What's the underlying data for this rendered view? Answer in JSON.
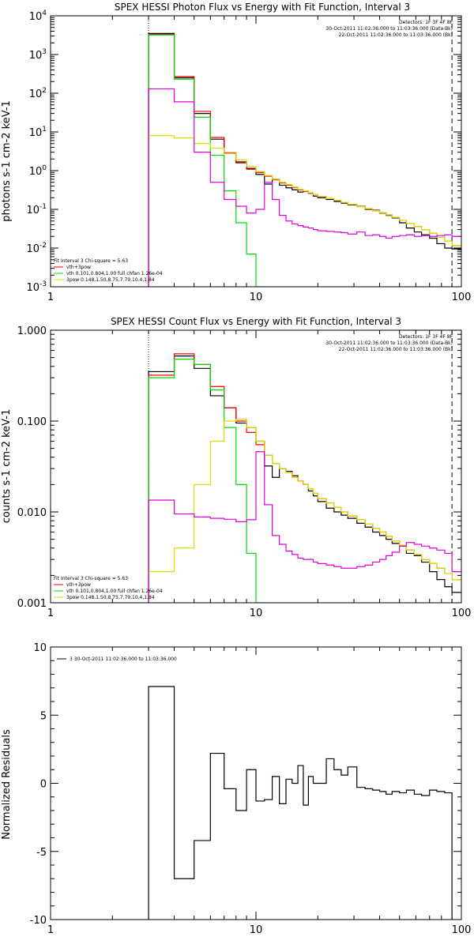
{
  "chart_data": [
    {
      "type": "line",
      "title": "SPEX HESSI Photon Flux vs Energy with Fit Function, Interval 3",
      "ylabel": "photons s-1 cm-2 keV-1",
      "xlabel": "",
      "x_scale": "log",
      "y_scale": "log",
      "xlim": [
        1,
        100
      ],
      "ylim": [
        0.001,
        10000
      ],
      "x_ticks": [
        "1",
        "10",
        "100"
      ],
      "y_ticks": [
        "10-3",
        "10-2",
        "10-1",
        "100",
        "101",
        "102",
        "103",
        "104"
      ],
      "vlines": [
        3,
        90
      ],
      "detectors_text": "Detectors: 1F 3F 4F 8F",
      "time_labels": [
        "30-Oct-2011 11:02:36.000 to 11:03:36.000 (Data-Bk)",
        "22-Oct-2011 11:02:36.000 to 11:03:36.000 (Bk)"
      ],
      "fit_label": "Fit Interval 3    Chi-square = 5.63",
      "legend": [
        {
          "name": "vth+3pow",
          "color": "#ff0000"
        },
        {
          "name": "vth 0.101,0.804,1.00  full chfan 1.26e-04",
          "color": "#00dd00"
        },
        {
          "name": "3pow 0.148,1.50,8.75,7.79,10.4,1.84",
          "color": "#dddd00"
        }
      ],
      "edges": [
        3,
        4,
        5,
        6,
        7,
        8,
        9,
        10,
        11,
        12,
        13,
        14,
        15,
        16,
        17,
        18,
        19,
        20,
        22,
        24,
        26,
        28,
        31,
        34,
        37,
        40,
        43,
        46,
        50,
        54,
        59,
        64,
        70,
        76,
        83,
        90,
        100
      ],
      "series": [
        {
          "name": "Data-Bk",
          "color": "#000000",
          "values": [
            3500,
            250,
            30,
            6.5,
            2.8,
            1.6,
            1.1,
            0.8,
            0.45,
            0.6,
            0.42,
            0.36,
            0.32,
            0.28,
            0.3,
            0.26,
            0.22,
            0.2,
            0.18,
            0.16,
            0.145,
            0.13,
            0.12,
            0.1,
            0.095,
            0.08,
            0.07,
            0.06,
            0.045,
            0.033,
            0.026,
            0.022,
            0.018,
            0.013,
            0.01,
            0.0095
          ]
        },
        {
          "name": "vth+3pow",
          "color": "#ff0000",
          "values": [
            3300,
            270,
            34,
            7.2,
            2.9,
            1.7,
            1.15,
            0.9,
            0.72,
            0.58,
            0.48,
            0.42,
            0.37,
            0.32,
            0.29,
            0.26,
            0.24,
            0.215,
            0.19,
            0.17,
            0.152,
            0.135,
            0.118,
            0.104,
            0.092,
            0.082,
            0.072,
            0.062,
            0.052,
            0.043,
            0.036,
            0.03,
            0.024,
            0.019,
            0.015,
            0.0115
          ]
        },
        {
          "name": "vth",
          "color": "#00dd00",
          "values": [
            3200,
            230,
            24,
            2.5,
            0.3,
            0.045,
            0.007,
            0.001
          ]
        },
        {
          "name": "3pow",
          "color": "#dddd00",
          "values": [
            8,
            7,
            5,
            3.8,
            2.8,
            1.9,
            1.3,
            0.95,
            0.75,
            0.6,
            0.5,
            0.44,
            0.38,
            0.33,
            0.3,
            0.27,
            0.24,
            0.215,
            0.19,
            0.17,
            0.152,
            0.135,
            0.118,
            0.104,
            0.092,
            0.082,
            0.072,
            0.062,
            0.052,
            0.043,
            0.036,
            0.03,
            0.024,
            0.019,
            0.015,
            0.0115
          ]
        },
        {
          "name": "Bk",
          "color": "#dd00dd",
          "values": [
            130,
            60,
            3,
            0.5,
            0.18,
            0.12,
            0.08,
            0.1,
            0.5,
            0.18,
            0.07,
            0.05,
            0.042,
            0.038,
            0.035,
            0.033,
            0.03,
            0.028,
            0.027,
            0.026,
            0.025,
            0.023,
            0.026,
            0.021,
            0.022,
            0.02,
            0.018,
            0.02,
            0.021,
            0.022,
            0.02,
            0.021,
            0.02,
            0.021,
            0.022,
            0.02
          ]
        }
      ]
    },
    {
      "type": "line",
      "title": "SPEX HESSI Count Flux vs Energy with Fit Function, Interval 3",
      "ylabel": "counts s-1 cm-2 keV-1",
      "xlabel": "",
      "x_scale": "log",
      "y_scale": "log",
      "xlim": [
        1,
        100
      ],
      "ylim": [
        0.001,
        1
      ],
      "x_ticks": [
        "1",
        "10",
        "100"
      ],
      "y_ticks": [
        "0.001",
        "0.010",
        "0.100",
        "1.000"
      ],
      "vlines": [
        3,
        90
      ],
      "detectors_text": "Detectors: 1F 3F 4F 8F",
      "time_labels": [
        "30-Oct-2011 11:02:36.000 to 11:03:36.000 (Data-Bk)",
        "22-Oct-2011 11:02:36.000 to 11:03:36.000 (Bk)"
      ],
      "fit_label": "Fit Interval 3    Chi-square = 5.63",
      "legend": [
        {
          "name": "vth+3pow",
          "color": "#ff0000"
        },
        {
          "name": "vth 0.101,0.804,1.00  full chfan 1.26e-04",
          "color": "#00dd00"
        },
        {
          "name": "3pow 0.148,1.50,8.75,7.79,10.4,1.84",
          "color": "#dddd00"
        }
      ],
      "edges": [
        3,
        4,
        5,
        6,
        7,
        8,
        9,
        10,
        11,
        12,
        13,
        14,
        15,
        16,
        17,
        18,
        19,
        20,
        22,
        24,
        26,
        28,
        31,
        34,
        37,
        40,
        43,
        46,
        50,
        54,
        59,
        64,
        70,
        76,
        83,
        90,
        100
      ],
      "series": [
        {
          "name": "Data-Bk",
          "color": "#000000",
          "values": [
            0.35,
            0.52,
            0.38,
            0.19,
            0.14,
            0.095,
            0.085,
            0.06,
            0.032,
            0.024,
            0.03,
            0.028,
            0.025,
            0.022,
            0.02,
            0.017,
            0.015,
            0.013,
            0.011,
            0.01,
            0.0092,
            0.0085,
            0.0075,
            0.0068,
            0.006,
            0.0055,
            0.005,
            0.0045,
            0.0042,
            0.0035,
            0.0033,
            0.0028,
            0.0022,
            0.0018,
            0.0015,
            0.0013
          ]
        },
        {
          "name": "vth+3pow",
          "color": "#ff0000",
          "values": [
            0.32,
            0.55,
            0.42,
            0.24,
            0.14,
            0.1,
            0.075,
            0.055,
            0.042,
            0.034,
            0.03,
            0.027,
            0.024,
            0.022,
            0.02,
            0.018,
            0.016,
            0.014,
            0.0125,
            0.0112,
            0.01,
            0.009,
            0.0082,
            0.0074,
            0.0066,
            0.006,
            0.0054,
            0.0048,
            0.0043,
            0.0038,
            0.0034,
            0.003,
            0.0027,
            0.0024,
            0.0021,
            0.0018
          ]
        },
        {
          "name": "vth",
          "color": "#00dd00",
          "values": [
            0.3,
            0.48,
            0.42,
            0.22,
            0.085,
            0.02,
            0.0035,
            0.001
          ]
        },
        {
          "name": "3pow",
          "color": "#dddd00",
          "values": [
            0.0022,
            0.004,
            0.02,
            0.06,
            0.1,
            0.105,
            0.085,
            0.06,
            0.042,
            0.034,
            0.03,
            0.027,
            0.024,
            0.022,
            0.02,
            0.018,
            0.016,
            0.014,
            0.0125,
            0.0112,
            0.01,
            0.009,
            0.0082,
            0.0074,
            0.0066,
            0.006,
            0.0054,
            0.0048,
            0.0043,
            0.0038,
            0.0034,
            0.003,
            0.0027,
            0.0024,
            0.0021,
            0.0018
          ]
        },
        {
          "name": "Bk",
          "color": "#dd00dd",
          "values": [
            0.0135,
            0.0095,
            0.0088,
            0.0085,
            0.0083,
            0.0078,
            0.0082,
            0.046,
            0.012,
            0.0055,
            0.0044,
            0.0037,
            0.0034,
            0.0031,
            0.003,
            0.003,
            0.0028,
            0.0027,
            0.0026,
            0.0025,
            0.0024,
            0.0024,
            0.0025,
            0.0026,
            0.0028,
            0.003,
            0.0033,
            0.0036,
            0.0042,
            0.0046,
            0.0044,
            0.0042,
            0.004,
            0.0038,
            0.0035,
            0.0022
          ]
        }
      ]
    },
    {
      "type": "line",
      "title": "",
      "ylabel": "Normalized Residuals",
      "xlabel": "",
      "x_scale": "log",
      "y_scale": "linear",
      "xlim": [
        1,
        100
      ],
      "ylim": [
        -10,
        10
      ],
      "x_ticks": [
        "1",
        "10",
        "100"
      ],
      "y_ticks": [
        "-10",
        "-5",
        "0",
        "5",
        "10"
      ],
      "legend_text": "3  30-Oct-2011 11:02:36.000 to 11:03:36.000",
      "edges": [
        3,
        4,
        5,
        6,
        7,
        8,
        9,
        10,
        11,
        12,
        13,
        14,
        15,
        16,
        17,
        18,
        19,
        20,
        22,
        24,
        26,
        28,
        31,
        34,
        37,
        40,
        43,
        46,
        50,
        54,
        59,
        64,
        70,
        76,
        83,
        90
      ],
      "series": [
        {
          "name": "residuals",
          "color": "#000000",
          "values": [
            7.1,
            -7.0,
            -4.2,
            2.2,
            -0.4,
            -2.0,
            1.0,
            -1.3,
            -1.2,
            0.5,
            -1.5,
            0.3,
            0.0,
            1.3,
            -1.6,
            0.5,
            0.0,
            0.0,
            1.8,
            1.0,
            0.6,
            1.2,
            -0.3,
            -0.4,
            -0.5,
            -0.6,
            -0.8,
            -0.6,
            -0.7,
            -0.5,
            -0.8,
            -0.9,
            -0.5,
            -0.6,
            -0.7
          ]
        }
      ]
    }
  ]
}
